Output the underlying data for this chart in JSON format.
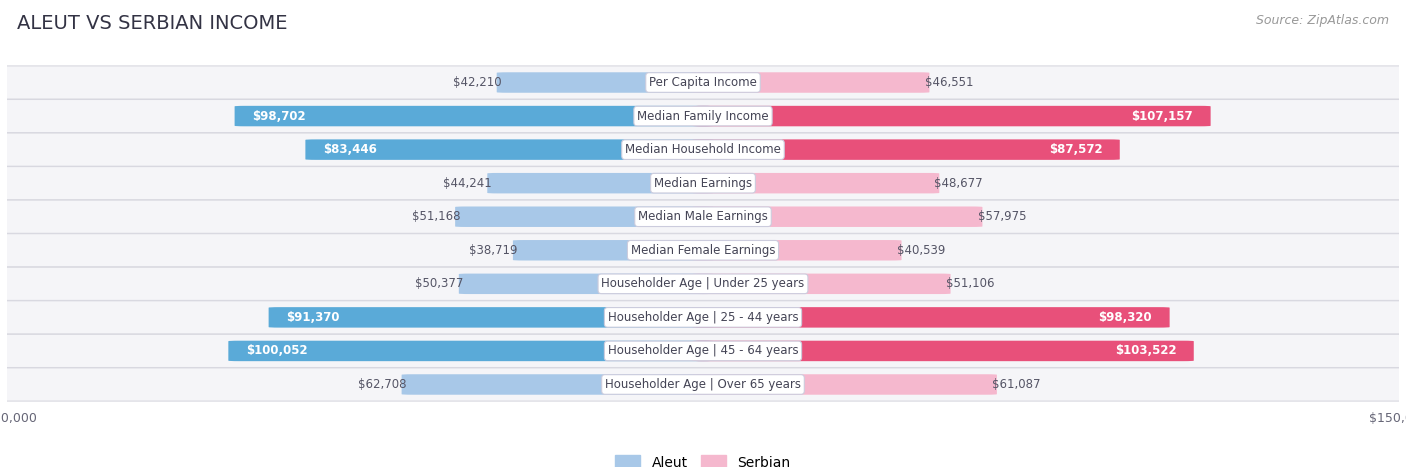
{
  "title": "ALEUT VS SERBIAN INCOME",
  "source": "Source: ZipAtlas.com",
  "categories": [
    "Per Capita Income",
    "Median Family Income",
    "Median Household Income",
    "Median Earnings",
    "Median Male Earnings",
    "Median Female Earnings",
    "Householder Age | Under 25 years",
    "Householder Age | 25 - 44 years",
    "Householder Age | 45 - 64 years",
    "Householder Age | Over 65 years"
  ],
  "aleut_values": [
    42210,
    98702,
    83446,
    44241,
    51168,
    38719,
    50377,
    91370,
    100052,
    62708
  ],
  "serbian_values": [
    46551,
    107157,
    87572,
    48677,
    57975,
    40539,
    51106,
    98320,
    103522,
    61087
  ],
  "aleut_labels": [
    "$42,210",
    "$98,702",
    "$83,446",
    "$44,241",
    "$51,168",
    "$38,719",
    "$50,377",
    "$91,370",
    "$100,052",
    "$62,708"
  ],
  "serbian_labels": [
    "$46,551",
    "$107,157",
    "$87,572",
    "$48,677",
    "$57,975",
    "$40,539",
    "$51,106",
    "$98,320",
    "$103,522",
    "$61,087"
  ],
  "aleut_color_normal": "#a8c8e8",
  "aleut_color_highlight": "#5aaad8",
  "serbian_color_normal": "#f5b8ce",
  "serbian_color_highlight": "#e8507a",
  "highlight_aleut": [
    1,
    2,
    7,
    8
  ],
  "highlight_serbian": [
    1,
    2,
    7,
    8
  ],
  "max_val": 150000,
  "bar_height": 0.58,
  "bg_color": "#ffffff",
  "row_bg_color": "#f5f5f8",
  "legend_aleut": "Aleut",
  "legend_serbian": "Serbian",
  "title_fontsize": 14,
  "source_fontsize": 9,
  "label_fontsize": 8.5,
  "category_fontsize": 8.5
}
